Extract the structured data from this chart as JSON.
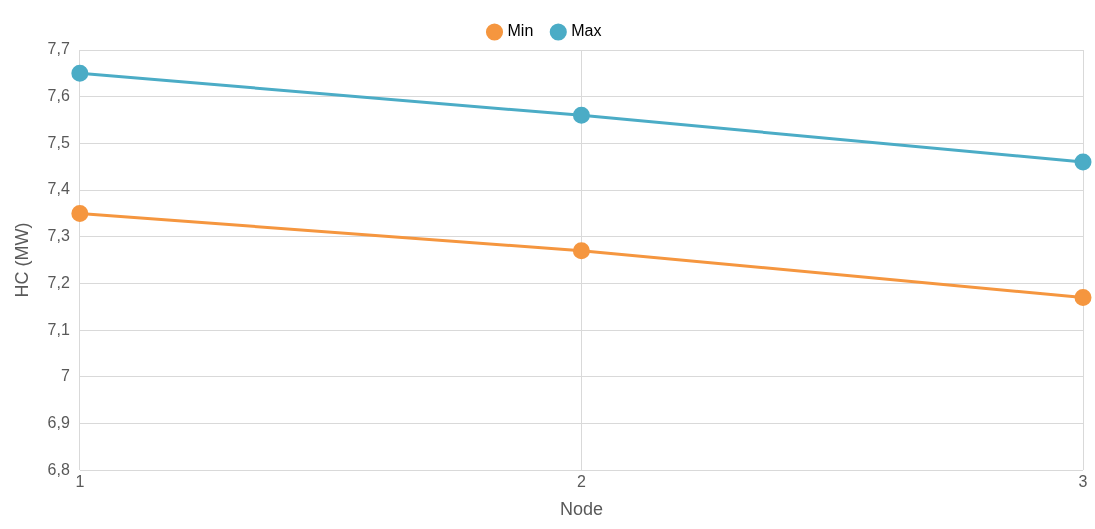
{
  "chart_data": {
    "type": "line",
    "xlabel": "Node",
    "ylabel": "HC (MW)",
    "x": [
      1,
      2,
      3
    ],
    "series": [
      {
        "name": "Min",
        "color": "#f5963f",
        "values": [
          7.35,
          7.27,
          7.17
        ]
      },
      {
        "name": "Max",
        "color": "#4bacc6",
        "values": [
          7.65,
          7.56,
          7.46
        ]
      }
    ],
    "xlim": [
      1,
      3
    ],
    "xticks": [
      1,
      2,
      3
    ],
    "ylim": [
      6.8,
      7.7
    ],
    "yticks": [
      {
        "value": 6.8,
        "label": "6,8"
      },
      {
        "value": 6.9,
        "label": "6,9"
      },
      7,
      {
        "value": 7.1,
        "label": "7,1"
      },
      {
        "value": 7.2,
        "label": "7,2"
      },
      {
        "value": 7.3,
        "label": "7,3"
      },
      {
        "value": 7.4,
        "label": "7,4"
      },
      {
        "value": 7.5,
        "label": "7,5"
      },
      {
        "value": 7.6,
        "label": "7,6"
      },
      {
        "value": 7.7,
        "label": "7,7"
      }
    ],
    "grid": true,
    "legend": "top",
    "marker": "circle",
    "line_style": "solid"
  }
}
